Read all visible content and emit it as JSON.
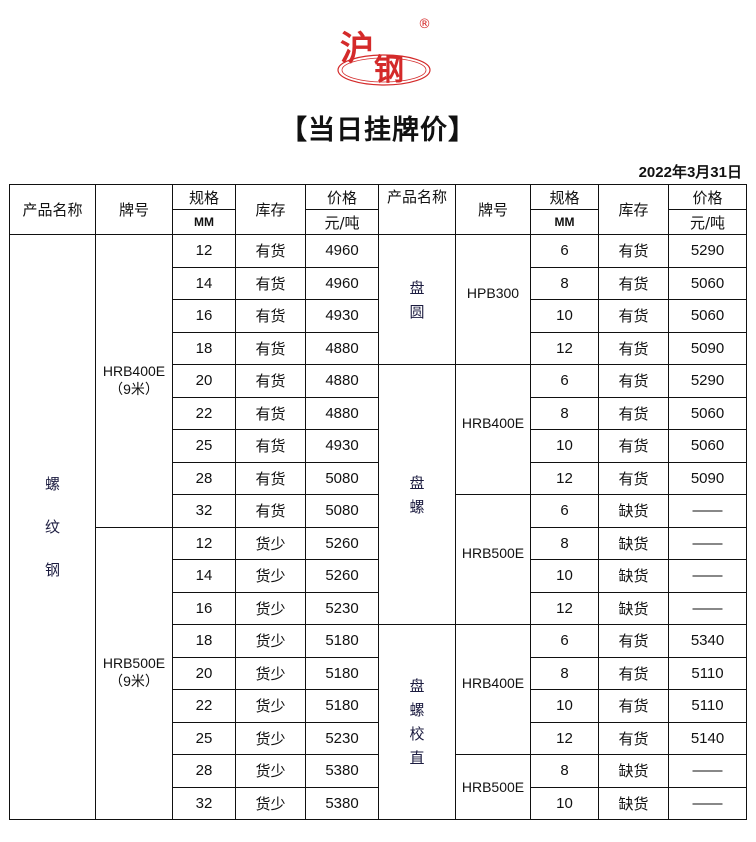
{
  "logo": {
    "text": "沪钢",
    "registered": "®",
    "color": "#d42a2a"
  },
  "title": "【当日挂牌价】",
  "date": "2022年3月31日",
  "header": {
    "product": "产品名称",
    "brand": "牌号",
    "spec": "规格",
    "spec_unit": "MM",
    "stock": "库存",
    "price": "价格",
    "price_unit": "元/吨",
    "product_right": "产品名称"
  },
  "left": {
    "product": "螺纹钢",
    "groups": [
      {
        "brand": "HRB400E",
        "note": "（9米）",
        "rows": [
          [
            "12",
            "有货",
            "4960"
          ],
          [
            "14",
            "有货",
            "4960"
          ],
          [
            "16",
            "有货",
            "4930"
          ],
          [
            "18",
            "有货",
            "4880"
          ],
          [
            "20",
            "有货",
            "4880"
          ],
          [
            "22",
            "有货",
            "4880"
          ],
          [
            "25",
            "有货",
            "4930"
          ],
          [
            "28",
            "有货",
            "5080"
          ],
          [
            "32",
            "有货",
            "5080"
          ]
        ]
      },
      {
        "brand": "HRB500E",
        "note": "（9米）",
        "rows": [
          [
            "12",
            "货少",
            "5260"
          ],
          [
            "14",
            "货少",
            "5260"
          ],
          [
            "16",
            "货少",
            "5230"
          ],
          [
            "18",
            "货少",
            "5180"
          ],
          [
            "20",
            "货少",
            "5180"
          ],
          [
            "22",
            "货少",
            "5180"
          ],
          [
            "25",
            "货少",
            "5230"
          ],
          [
            "28",
            "货少",
            "5380"
          ],
          [
            "32",
            "货少",
            "5380"
          ]
        ]
      }
    ]
  },
  "right": [
    {
      "product": "盘圆",
      "groups": [
        {
          "brand": "HPB300",
          "rows": [
            [
              "6",
              "有货",
              "5290"
            ],
            [
              "8",
              "有货",
              "5060"
            ],
            [
              "10",
              "有货",
              "5060"
            ],
            [
              "12",
              "有货",
              "5090"
            ]
          ]
        }
      ]
    },
    {
      "product": "盘螺",
      "groups": [
        {
          "brand": "HRB400E",
          "rows": [
            [
              "6",
              "有货",
              "5290"
            ],
            [
              "8",
              "有货",
              "5060"
            ],
            [
              "10",
              "有货",
              "5060"
            ],
            [
              "12",
              "有货",
              "5090"
            ]
          ]
        },
        {
          "brand": "HRB500E",
          "rows": [
            [
              "6",
              "缺货",
              "——"
            ],
            [
              "8",
              "缺货",
              "——"
            ],
            [
              "10",
              "缺货",
              "——"
            ],
            [
              "12",
              "缺货",
              "——"
            ]
          ]
        }
      ]
    },
    {
      "product": "盘螺校直",
      "groups": [
        {
          "brand": "HRB400E",
          "rows": [
            [
              "6",
              "有货",
              "5340"
            ],
            [
              "8",
              "有货",
              "5110"
            ],
            [
              "10",
              "有货",
              "5110"
            ],
            [
              "12",
              "有货",
              "5140"
            ]
          ]
        },
        {
          "brand": "HRB500E",
          "rows": [
            [
              "8",
              "缺货",
              "——"
            ],
            [
              "10",
              "缺货",
              "——"
            ]
          ]
        }
      ]
    }
  ]
}
